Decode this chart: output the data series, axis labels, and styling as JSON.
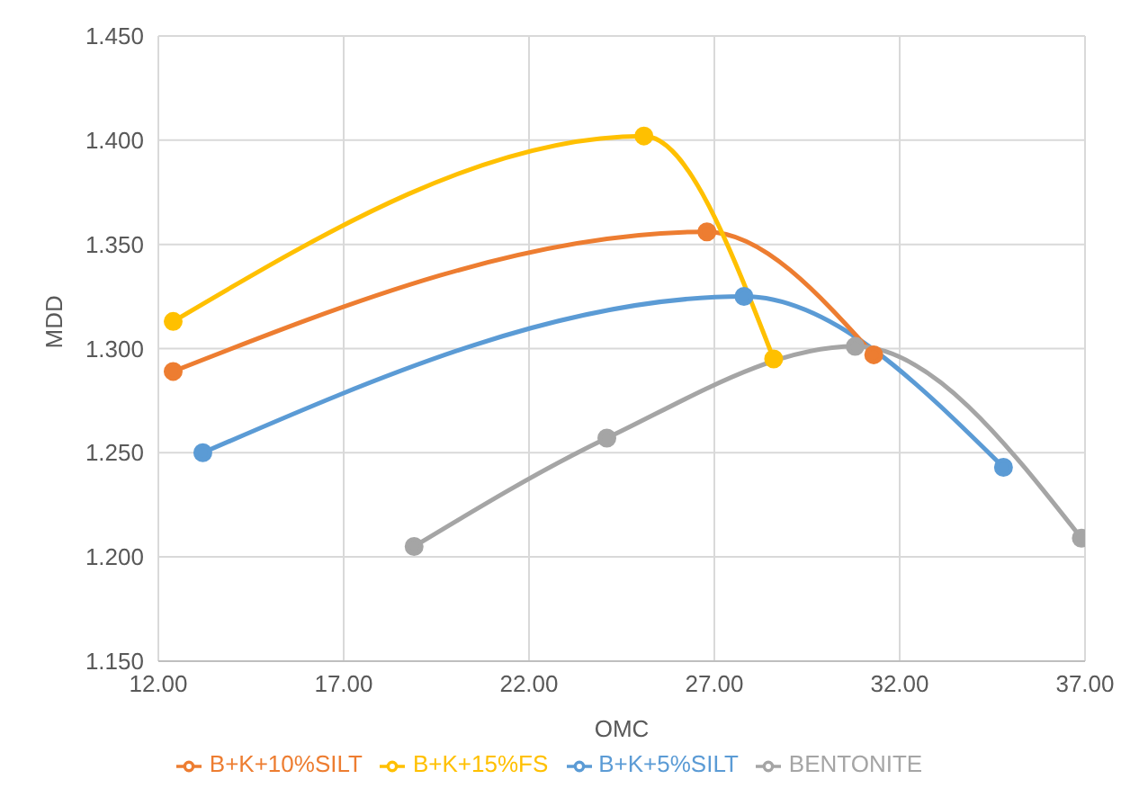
{
  "chart_data": {
    "type": "line",
    "xlabel": "OMC",
    "ylabel": "MDD",
    "xlim": [
      12,
      37
    ],
    "xticks": [
      {
        "value": 12,
        "label": "12.00"
      },
      {
        "value": 17,
        "label": "17.00"
      },
      {
        "value": 22,
        "label": "22.00"
      },
      {
        "value": 27,
        "label": "27.00"
      },
      {
        "value": 32,
        "label": "32.00"
      },
      {
        "value": 37,
        "label": "37.00"
      }
    ],
    "ylim": [
      1.15,
      1.45
    ],
    "yticks": [
      {
        "value": 1.15,
        "label": "1.150"
      },
      {
        "value": 1.2,
        "label": "1.200"
      },
      {
        "value": 1.25,
        "label": "1.250"
      },
      {
        "value": 1.3,
        "label": "1.300"
      },
      {
        "value": 1.35,
        "label": "1.350"
      },
      {
        "value": 1.4,
        "label": "1.400"
      },
      {
        "value": 1.45,
        "label": "1.450"
      }
    ],
    "grid": true,
    "legend": "bottom",
    "marker": "circle",
    "line_style": "solid",
    "series": [
      {
        "name": "B+K+5%SILT",
        "color": "#5b9bd5",
        "x": [
          13.2,
          27.8,
          34.8
        ],
        "values": [
          1.25,
          1.325,
          1.243
        ]
      },
      {
        "name": "B+K+10%SILT",
        "color": "#ed7d31",
        "x": [
          12.4,
          26.8,
          31.3
        ],
        "values": [
          1.289,
          1.356,
          1.297
        ]
      },
      {
        "name": "BENTONITE",
        "color": "#a5a5a5",
        "x": [
          18.9,
          24.1,
          30.8,
          36.9
        ],
        "values": [
          1.205,
          1.257,
          1.301,
          1.209
        ]
      },
      {
        "name": "B+K+15%FS",
        "color": "#ffc000",
        "x": [
          12.4,
          25.1,
          28.6
        ],
        "values": [
          1.313,
          1.402,
          1.295
        ]
      }
    ]
  }
}
